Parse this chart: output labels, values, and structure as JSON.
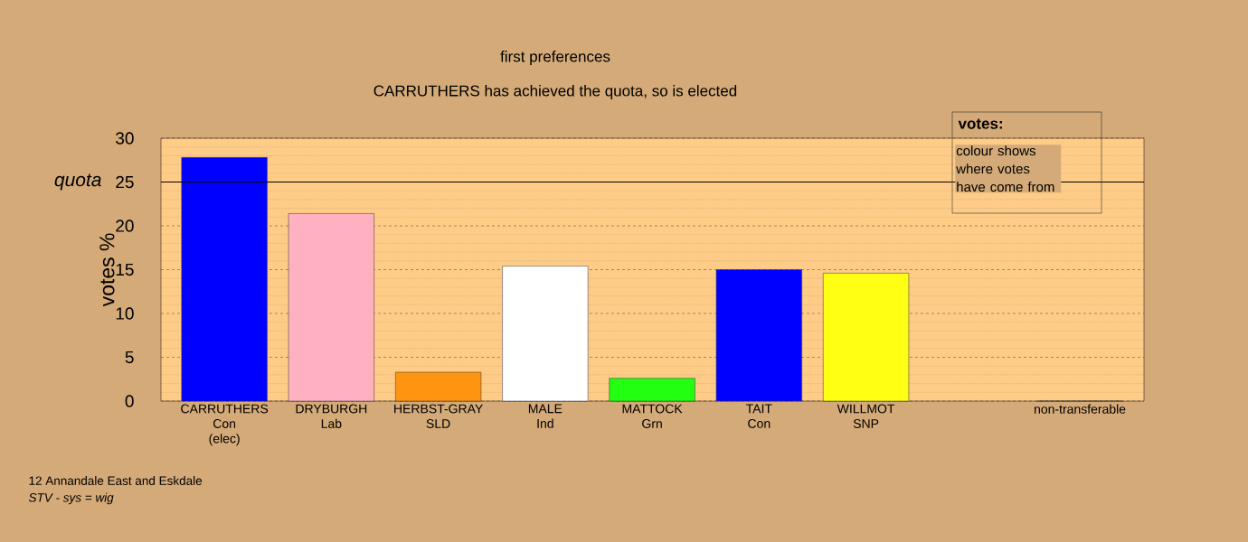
{
  "chart_data": {
    "type": "bar",
    "title": "first preferences",
    "subtitle": "CARRUTHERS has achieved the quota, so is elected",
    "ylabel": "votes %",
    "categories": [
      "CARRUTHERS Con (elec)",
      "DRYBURGH Lab",
      "HERBST-GRAY SLD",
      "MALE Ind",
      "MATTOCK Grn",
      "TAIT Con",
      "WILLMOT SNP",
      null,
      "non-transferable"
    ],
    "values": [
      27.8,
      21.4,
      3.3,
      15.4,
      2.6,
      15.0,
      14.6,
      null,
      0
    ],
    "colors": [
      "#0000ff",
      "#ffb1c1",
      "#ff9410",
      "#ffffff",
      "#22ff11",
      "#0000ff",
      "#ffff14",
      "#ffffff",
      "#ffffff"
    ],
    "ylim": [
      0,
      30
    ],
    "yticks": [
      0,
      5,
      10,
      15,
      20,
      25,
      30
    ],
    "grid": "y",
    "ref_lines": [
      {
        "axis": "y",
        "value": 25,
        "label": "quota",
        "color": "#000000",
        "line_style": "solid"
      }
    ],
    "annotations": [
      "votes:",
      "colour shows where votes have come from",
      "12 Annandale East and Eskdale",
      "STV - sys = wig"
    ]
  }
}
